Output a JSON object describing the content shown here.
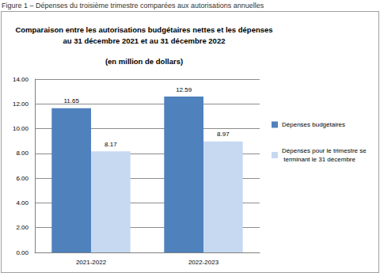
{
  "caption": "Figure 1 – Dépenses du troisième trimestre comparées aux autorisations annuelles",
  "chart_data": {
    "type": "bar",
    "title": "Comparaison entre les autorisations budgétaires nettes et les dépenses\nau 31 décembre 2021 et au 31 décembre 2022",
    "subtitle": "(en million de dollars)",
    "categories": [
      "2021-2022",
      "2022-2023"
    ],
    "series": [
      {
        "name": "Dépenses budgétaires",
        "color": "#4f81bd",
        "values": [
          11.65,
          12.59
        ]
      },
      {
        "name": "Dépenses pour le trimestre se terminant le 31 décembre",
        "color": "#c6d9f1",
        "values": [
          8.17,
          8.97
        ]
      }
    ],
    "ylim": [
      0,
      14
    ],
    "yticks": [
      {
        "value": 0,
        "label": "0.00"
      },
      {
        "value": 2,
        "label": "2.00"
      },
      {
        "value": 4,
        "label": "4.00"
      },
      {
        "value": 6,
        "label": "6.00"
      },
      {
        "value": 8,
        "label": "8.00"
      },
      {
        "value": 10,
        "label": "10.00"
      },
      {
        "value": 12,
        "label": "12.00"
      },
      {
        "value": 14,
        "label": "14.00"
      }
    ],
    "grid": true,
    "legend": "right",
    "data_labels": true
  }
}
